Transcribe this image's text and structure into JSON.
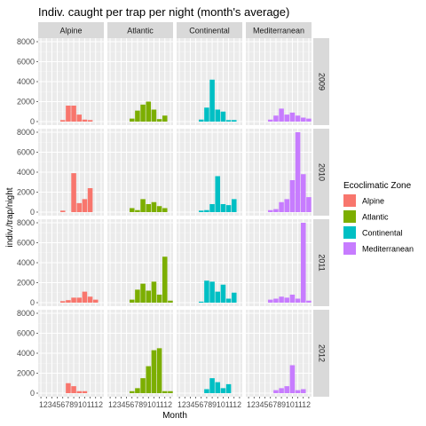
{
  "title": "Indiv. caught per trap per night (month's average)",
  "chart_data": {
    "type": "bar",
    "title": "Indiv. caught per trap per night (month's average)",
    "xlabel": "Month",
    "ylabel": "indiv./trap/night",
    "ylim": [
      0,
      8000
    ],
    "yticks": [
      0,
      2000,
      4000,
      6000,
      8000
    ],
    "xticks": [
      1,
      2,
      3,
      4,
      5,
      6,
      7,
      8,
      9,
      10,
      11,
      12
    ],
    "x_tick_labels_text": "123456789101112",
    "legend_position": "right",
    "grid": true,
    "facet_columns": [
      "Alpine",
      "Atlantic",
      "Continental",
      "Mediterranean"
    ],
    "facet_rows": [
      "2009",
      "2010",
      "2011",
      "2012"
    ],
    "legend": {
      "title": "Ecoclimatic Zone",
      "entries": [
        {
          "label": "Alpine",
          "color": "#F8766D"
        },
        {
          "label": "Atlantic",
          "color": "#7CAE00"
        },
        {
          "label": "Continental",
          "color": "#00BFC4"
        },
        {
          "label": "Mediterranean",
          "color": "#C77CFF"
        }
      ]
    },
    "months": [
      1,
      2,
      3,
      4,
      5,
      6,
      7,
      8,
      9,
      10,
      11,
      12
    ],
    "panels": {
      "2009": {
        "Alpine": [
          0,
          0,
          0,
          0,
          150,
          1600,
          1600,
          700,
          200,
          150,
          0,
          0
        ],
        "Atlantic": [
          0,
          0,
          0,
          0,
          300,
          1100,
          1700,
          2000,
          1200,
          250,
          600,
          0
        ],
        "Continental": [
          0,
          0,
          0,
          0,
          200,
          1400,
          4200,
          1200,
          1000,
          150,
          150,
          0
        ],
        "Mediterranean": [
          0,
          0,
          0,
          0,
          200,
          600,
          1300,
          700,
          900,
          600,
          400,
          300
        ]
      },
      "2010": {
        "Alpine": [
          0,
          0,
          0,
          0,
          150,
          0,
          3900,
          900,
          1300,
          2400,
          0,
          0
        ],
        "Atlantic": [
          0,
          0,
          0,
          0,
          400,
          200,
          1300,
          800,
          1000,
          600,
          400,
          0
        ],
        "Continental": [
          0,
          0,
          0,
          0,
          150,
          200,
          800,
          3600,
          800,
          700,
          1300,
          0
        ],
        "Mediterranean": [
          0,
          0,
          0,
          0,
          200,
          300,
          1000,
          1300,
          3200,
          8000,
          3800,
          1500
        ]
      },
      "2011": {
        "Alpine": [
          0,
          0,
          0,
          0,
          150,
          250,
          500,
          500,
          1100,
          600,
          300,
          0
        ],
        "Atlantic": [
          0,
          0,
          0,
          0,
          300,
          1300,
          1900,
          1200,
          2100,
          800,
          4600,
          200
        ],
        "Continental": [
          0,
          0,
          0,
          0,
          100,
          2200,
          2100,
          1100,
          1800,
          400,
          1000,
          0
        ],
        "Mediterranean": [
          0,
          0,
          0,
          0,
          300,
          400,
          600,
          500,
          800,
          400,
          8000,
          200
        ]
      },
      "2012": {
        "Alpine": [
          0,
          0,
          0,
          0,
          0,
          1000,
          700,
          200,
          200,
          0,
          0,
          0
        ],
        "Atlantic": [
          0,
          0,
          0,
          0,
          200,
          500,
          1500,
          2700,
          4300,
          4500,
          200,
          200
        ],
        "Continental": [
          0,
          0,
          0,
          0,
          0,
          400,
          1500,
          1100,
          500,
          900,
          0,
          0
        ],
        "Mediterranean": [
          0,
          0,
          0,
          0,
          0,
          300,
          500,
          700,
          2800,
          300,
          400,
          0
        ]
      }
    }
  }
}
